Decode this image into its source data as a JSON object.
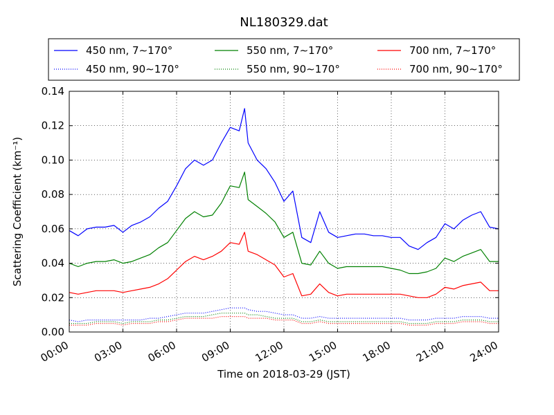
{
  "chart_data": {
    "type": "line",
    "title": "NL180329.dat",
    "xlabel": "Time on 2018-03-29 (JST)",
    "ylabel": "Scattering Coefficient (km⁻¹)",
    "xlim": [
      "00:00",
      "24:00"
    ],
    "ylim": [
      0.0,
      0.14
    ],
    "x_ticks": [
      "00:00",
      "03:00",
      "06:00",
      "09:00",
      "12:00",
      "15:00",
      "18:00",
      "21:00",
      "24:00"
    ],
    "y_ticks": [
      "0.00",
      "0.02",
      "0.04",
      "0.06",
      "0.08",
      "0.10",
      "0.12",
      "0.14"
    ],
    "grid": true,
    "legend_position": "top",
    "x_hours": [
      0,
      0.5,
      1,
      1.5,
      2,
      2.5,
      3,
      3.5,
      4,
      4.5,
      5,
      5.5,
      6,
      6.5,
      7,
      7.5,
      8,
      8.5,
      9,
      9.5,
      9.8,
      10,
      10.5,
      11,
      11.5,
      12,
      12.5,
      13,
      13.5,
      14,
      14.5,
      15,
      15.5,
      16,
      16.5,
      17,
      17.5,
      18,
      18.5,
      19,
      19.5,
      20,
      20.5,
      21,
      21.5,
      22,
      22.5,
      23,
      23.5,
      24
    ],
    "series": [
      {
        "name": "450 nm, 7∼170°",
        "color": "#0000ff",
        "style": "solid",
        "values": [
          0.059,
          0.056,
          0.06,
          0.061,
          0.061,
          0.062,
          0.058,
          0.062,
          0.064,
          0.067,
          0.072,
          0.076,
          0.085,
          0.095,
          0.1,
          0.097,
          0.1,
          0.11,
          0.119,
          0.117,
          0.13,
          0.11,
          0.1,
          0.095,
          0.087,
          0.076,
          0.082,
          0.055,
          0.052,
          0.07,
          0.058,
          0.055,
          0.056,
          0.057,
          0.057,
          0.056,
          0.056,
          0.055,
          0.055,
          0.05,
          0.048,
          0.052,
          0.055,
          0.063,
          0.06,
          0.065,
          0.068,
          0.07,
          0.061,
          0.06
        ]
      },
      {
        "name": "450 nm, 90∼170°",
        "color": "#0000ff",
        "style": "dotted",
        "values": [
          0.007,
          0.006,
          0.007,
          0.007,
          0.007,
          0.007,
          0.007,
          0.007,
          0.007,
          0.008,
          0.008,
          0.009,
          0.01,
          0.011,
          0.011,
          0.011,
          0.012,
          0.013,
          0.014,
          0.014,
          0.014,
          0.013,
          0.012,
          0.012,
          0.011,
          0.01,
          0.01,
          0.008,
          0.008,
          0.009,
          0.008,
          0.008,
          0.008,
          0.008,
          0.008,
          0.008,
          0.008,
          0.008,
          0.008,
          0.007,
          0.007,
          0.007,
          0.008,
          0.008,
          0.008,
          0.009,
          0.009,
          0.009,
          0.008,
          0.008
        ]
      },
      {
        "name": "550 nm, 7∼170°",
        "color": "#008000",
        "style": "solid",
        "values": [
          0.04,
          0.038,
          0.04,
          0.041,
          0.041,
          0.042,
          0.04,
          0.041,
          0.043,
          0.045,
          0.049,
          0.052,
          0.059,
          0.066,
          0.07,
          0.067,
          0.068,
          0.075,
          0.085,
          0.084,
          0.093,
          0.077,
          0.073,
          0.069,
          0.064,
          0.055,
          0.058,
          0.04,
          0.039,
          0.047,
          0.04,
          0.037,
          0.038,
          0.038,
          0.038,
          0.038,
          0.038,
          0.037,
          0.036,
          0.034,
          0.034,
          0.035,
          0.037,
          0.043,
          0.041,
          0.044,
          0.046,
          0.048,
          0.041,
          0.041
        ]
      },
      {
        "name": "550 nm, 90∼170°",
        "color": "#008000",
        "style": "dotted",
        "values": [
          0.005,
          0.005,
          0.005,
          0.006,
          0.006,
          0.006,
          0.005,
          0.006,
          0.006,
          0.006,
          0.007,
          0.007,
          0.008,
          0.009,
          0.009,
          0.009,
          0.01,
          0.011,
          0.011,
          0.011,
          0.011,
          0.01,
          0.01,
          0.009,
          0.008,
          0.008,
          0.008,
          0.006,
          0.006,
          0.007,
          0.006,
          0.006,
          0.006,
          0.006,
          0.006,
          0.006,
          0.006,
          0.006,
          0.006,
          0.005,
          0.005,
          0.005,
          0.006,
          0.006,
          0.006,
          0.007,
          0.007,
          0.007,
          0.006,
          0.006
        ]
      },
      {
        "name": "700 nm, 7∼170°",
        "color": "#ff0000",
        "style": "solid",
        "values": [
          0.023,
          0.022,
          0.023,
          0.024,
          0.024,
          0.024,
          0.023,
          0.024,
          0.025,
          0.026,
          0.028,
          0.031,
          0.036,
          0.041,
          0.044,
          0.042,
          0.044,
          0.047,
          0.052,
          0.051,
          0.058,
          0.047,
          0.045,
          0.042,
          0.039,
          0.032,
          0.034,
          0.021,
          0.022,
          0.028,
          0.023,
          0.021,
          0.022,
          0.022,
          0.022,
          0.022,
          0.022,
          0.022,
          0.022,
          0.021,
          0.02,
          0.02,
          0.022,
          0.026,
          0.025,
          0.027,
          0.028,
          0.029,
          0.024,
          0.024
        ]
      },
      {
        "name": "700 nm, 90∼170°",
        "color": "#ff0000",
        "style": "dotted",
        "values": [
          0.004,
          0.004,
          0.004,
          0.005,
          0.005,
          0.005,
          0.004,
          0.005,
          0.005,
          0.005,
          0.006,
          0.006,
          0.007,
          0.008,
          0.008,
          0.008,
          0.008,
          0.009,
          0.009,
          0.009,
          0.009,
          0.008,
          0.008,
          0.008,
          0.007,
          0.007,
          0.007,
          0.005,
          0.005,
          0.006,
          0.005,
          0.005,
          0.005,
          0.005,
          0.005,
          0.005,
          0.005,
          0.005,
          0.005,
          0.004,
          0.004,
          0.004,
          0.005,
          0.005,
          0.005,
          0.006,
          0.006,
          0.006,
          0.005,
          0.005
        ]
      }
    ]
  }
}
